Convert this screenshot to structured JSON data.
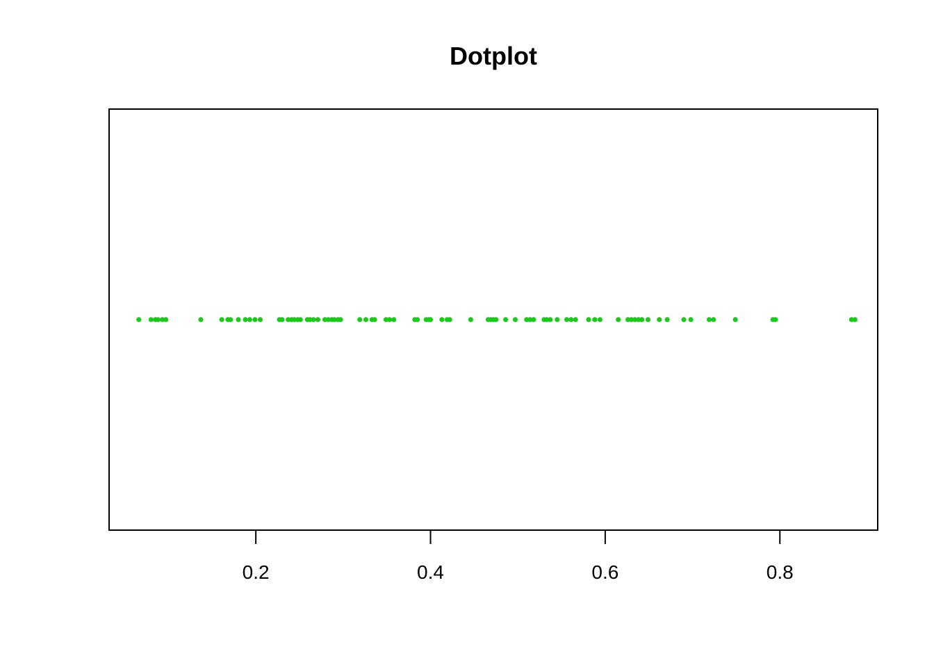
{
  "chart_data": {
    "type": "scatter",
    "title": "Dotplot",
    "xlabel": "",
    "ylabel": "",
    "xlim": [
      0.032,
      0.912
    ],
    "x_ticks": [
      "0.2",
      "0.4",
      "0.6",
      "0.8"
    ],
    "grid": false,
    "point_color": "#1cc81c",
    "x": [
      0.066,
      0.08,
      0.085,
      0.088,
      0.093,
      0.097,
      0.137,
      0.161,
      0.168,
      0.171,
      0.18,
      0.188,
      0.193,
      0.199,
      0.205,
      0.227,
      0.23,
      0.237,
      0.241,
      0.244,
      0.248,
      0.251,
      0.259,
      0.262,
      0.266,
      0.271,
      0.279,
      0.283,
      0.287,
      0.29,
      0.294,
      0.297,
      0.319,
      0.326,
      0.333,
      0.336,
      0.349,
      0.353,
      0.358,
      0.382,
      0.385,
      0.395,
      0.398,
      0.4,
      0.413,
      0.419,
      0.422,
      0.446,
      0.466,
      0.469,
      0.472,
      0.475,
      0.486,
      0.497,
      0.51,
      0.514,
      0.518,
      0.53,
      0.533,
      0.537,
      0.545,
      0.556,
      0.561,
      0.566,
      0.581,
      0.588,
      0.594,
      0.615,
      0.626,
      0.63,
      0.634,
      0.638,
      0.642,
      0.649,
      0.662,
      0.671,
      0.69,
      0.698,
      0.719,
      0.724,
      0.749,
      0.792,
      0.795,
      0.882,
      0.886
    ],
    "y": [
      1,
      1,
      1,
      1,
      1,
      1,
      1,
      1,
      1,
      1,
      1,
      1,
      1,
      1,
      1,
      1,
      1,
      1,
      1,
      1,
      1,
      1,
      1,
      1,
      1,
      1,
      1,
      1,
      1,
      1,
      1,
      1,
      1,
      1,
      1,
      1,
      1,
      1,
      1,
      1,
      1,
      1,
      1,
      1,
      1,
      1,
      1,
      1,
      1,
      1,
      1,
      1,
      1,
      1,
      1,
      1,
      1,
      1,
      1,
      1,
      1,
      1,
      1,
      1,
      1,
      1,
      1,
      1,
      1,
      1,
      1,
      1,
      1,
      1,
      1,
      1,
      1,
      1,
      1,
      1,
      1,
      1,
      1,
      1,
      1
    ],
    "ylim": [
      0.5,
      1.5
    ]
  }
}
